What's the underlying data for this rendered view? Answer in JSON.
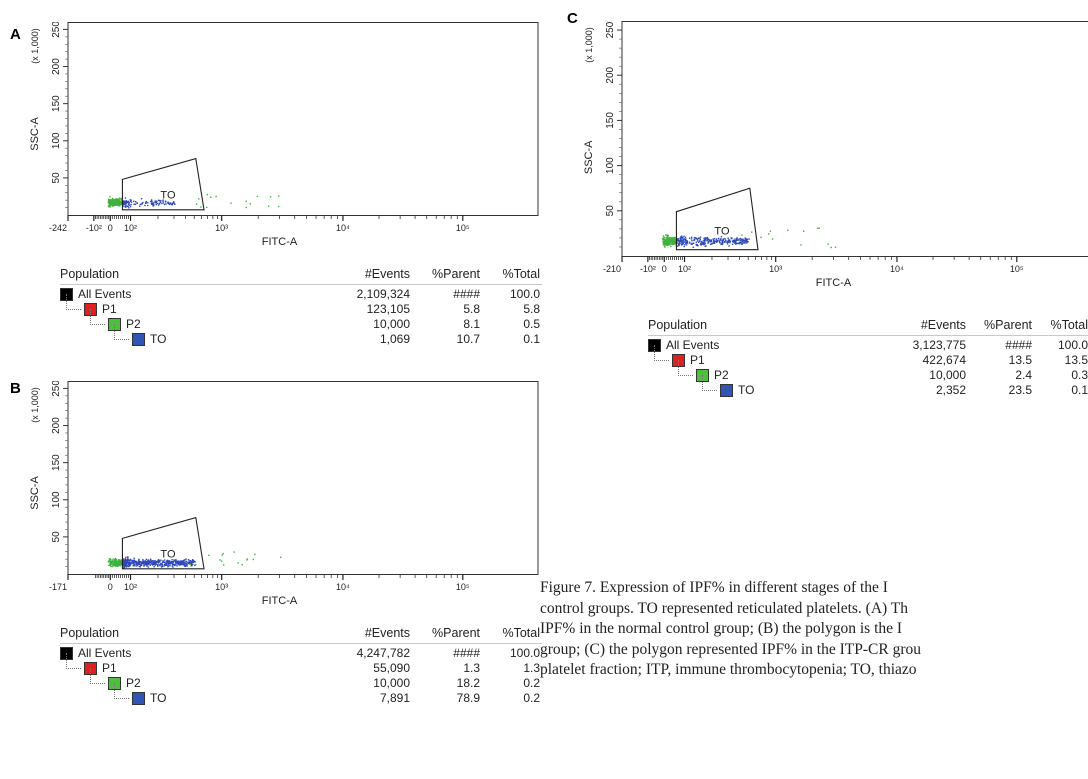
{
  "caption": {
    "lines": [
      "Figure 7. Expression of IPF% in different stages of the I",
      "control groups. TO represented reticulated platelets. (A) Th",
      "IPF% in the normal control group; (B) the polygon is the I",
      "group; (C) the polygon represented IPF% in the ITP-CR grou",
      "platelet fraction; ITP, immune thrombocytopenia; TO, thiazo"
    ]
  },
  "colors": {
    "gate_p2_dots": "#3fb23f",
    "gate_to_dots": "#2f48b8",
    "all_events": "#000000",
    "p1": "#e02020",
    "p2": "#4cbf3c",
    "to": "#2f55b5"
  },
  "chart_data": [
    {
      "id": "A",
      "type": "scatter",
      "panel_label": "A",
      "xlabel": "FITC-A",
      "ylabel": "SSC-A",
      "y_multiplier": "(x 1,000)",
      "x_scale": "biexponential",
      "x_ticks": [
        "-242",
        "-10²",
        "0",
        "10²",
        "10³",
        "10⁴",
        "10⁵"
      ],
      "y_ticks": [
        "50",
        "100",
        "150",
        "200",
        "250"
      ],
      "ylim": [
        0,
        260
      ],
      "gate": {
        "label": "TO",
        "shape": "polygon"
      },
      "clouds": [
        {
          "population": "P2",
          "color": "green",
          "x_range": [
            -10,
            60
          ],
          "y_center": 18,
          "count": 260
        },
        {
          "population": "TO",
          "color": "blue",
          "x_range": [
            60,
            300
          ],
          "y_center": 17,
          "count": 120
        }
      ],
      "table": {
        "headers": [
          "Population",
          "#Events",
          "%Parent",
          "%Total"
        ],
        "rows": [
          {
            "name": "All Events",
            "events": "2,109,324",
            "parent": "####",
            "total": "100.0",
            "level": 0,
            "swatch": "all_events"
          },
          {
            "name": "P1",
            "events": "123,105",
            "parent": "5.8",
            "total": "5.8",
            "level": 1,
            "swatch": "p1"
          },
          {
            "name": "P2",
            "events": "10,000",
            "parent": "8.1",
            "total": "0.5",
            "level": 2,
            "swatch": "p2"
          },
          {
            "name": "TO",
            "events": "1,069",
            "parent": "10.7",
            "total": "0.1",
            "level": 3,
            "swatch": "to"
          }
        ]
      }
    },
    {
      "id": "B",
      "type": "scatter",
      "panel_label": "B",
      "xlabel": "FITC-A",
      "ylabel": "SSC-A",
      "y_multiplier": "(x 1,000)",
      "x_scale": "biexponential",
      "x_ticks": [
        "-171",
        "0",
        "10²",
        "10³",
        "10⁴",
        "10⁵"
      ],
      "y_ticks": [
        "50",
        "100",
        "150",
        "200",
        "250"
      ],
      "ylim": [
        0,
        260
      ],
      "gate": {
        "label": "TO",
        "shape": "polygon"
      },
      "clouds": [
        {
          "population": "P2",
          "color": "green",
          "x_range": [
            -10,
            60
          ],
          "y_center": 16,
          "count": 160
        },
        {
          "population": "TO",
          "color": "blue",
          "x_range": [
            60,
            500
          ],
          "y_center": 16,
          "count": 520
        }
      ],
      "table": {
        "headers": [
          "Population",
          "#Events",
          "%Parent",
          "%Total"
        ],
        "rows": [
          {
            "name": "All Events",
            "events": "4,247,782",
            "parent": "####",
            "total": "100.0",
            "level": 0,
            "swatch": "all_events"
          },
          {
            "name": "P1",
            "events": "55,090",
            "parent": "1.3",
            "total": "1.3",
            "level": 1,
            "swatch": "p1"
          },
          {
            "name": "P2",
            "events": "10,000",
            "parent": "18.2",
            "total": "0.2",
            "level": 2,
            "swatch": "p2"
          },
          {
            "name": "TO",
            "events": "7,891",
            "parent": "78.9",
            "total": "0.2",
            "level": 3,
            "swatch": "to"
          }
        ]
      }
    },
    {
      "id": "C",
      "type": "scatter",
      "panel_label": "C",
      "xlabel": "FITC-A",
      "ylabel": "SSC-A",
      "y_multiplier": "(x 1,000)",
      "x_scale": "biexponential",
      "x_ticks": [
        "-210",
        "-10²",
        "0",
        "10²",
        "10³",
        "10⁴",
        "10⁵"
      ],
      "y_ticks": [
        "50",
        "100",
        "150",
        "200",
        "250"
      ],
      "ylim": [
        0,
        260
      ],
      "gate": {
        "label": "TO",
        "shape": "polygon"
      },
      "clouds": [
        {
          "population": "P2",
          "color": "green",
          "x_range": [
            -10,
            60
          ],
          "y_center": 17,
          "count": 240
        },
        {
          "population": "TO",
          "color": "blue",
          "x_range": [
            60,
            500
          ],
          "y_center": 17,
          "count": 300
        }
      ],
      "table": {
        "headers": [
          "Population",
          "#Events",
          "%Parent",
          "%Total"
        ],
        "rows": [
          {
            "name": "All Events",
            "events": "3,123,775",
            "parent": "####",
            "total": "100.0",
            "level": 0,
            "swatch": "all_events"
          },
          {
            "name": "P1",
            "events": "422,674",
            "parent": "13.5",
            "total": "13.5",
            "level": 1,
            "swatch": "p1"
          },
          {
            "name": "P2",
            "events": "10,000",
            "parent": "2.4",
            "total": "0.3",
            "level": 2,
            "swatch": "p2"
          },
          {
            "name": "TO",
            "events": "2,352",
            "parent": "23.5",
            "total": "0.1",
            "level": 3,
            "swatch": "to"
          }
        ]
      }
    }
  ]
}
